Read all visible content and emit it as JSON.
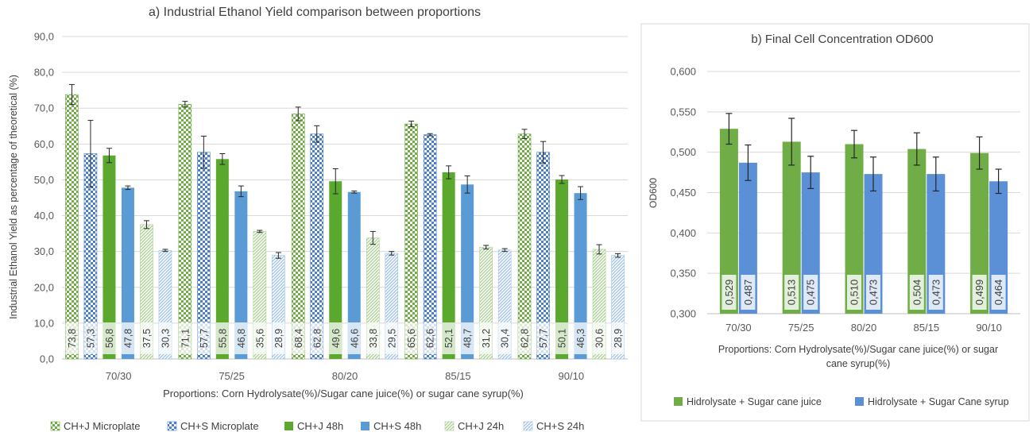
{
  "chart_data": [
    {
      "id": "a",
      "type": "bar",
      "title": "a) Industrial Ethanol Yield comparison between proportions",
      "xlabel": "Proportions: Corn Hydrolysate(%)/Sugar cane juice(%) or sugar cane syrup(%)",
      "ylabel": "Industrial Ethanol Yield as percentage of theoretical (%)",
      "ylim": [
        0,
        90
      ],
      "yticks": [
        "0,0",
        "10,0",
        "20,0",
        "30,0",
        "40,0",
        "50,0",
        "60,0",
        "70,0",
        "80,0",
        "90,0"
      ],
      "grid": true,
      "legend": "bottom",
      "categories": [
        "70/30",
        "75/25",
        "80/20",
        "85/15",
        "90/10"
      ],
      "series": [
        {
          "name": "CH+J Microplate",
          "color": "#70ad47",
          "pattern": "checker",
          "values": [
            73.8,
            71.1,
            68.4,
            65.6,
            62.8
          ],
          "err": [
            2.8,
            0.8,
            1.9,
            0.8,
            1.3
          ],
          "labels": [
            "73,8",
            "71,1",
            "68,4",
            "65,6",
            "62,8"
          ]
        },
        {
          "name": "CH+S Microplate",
          "color": "#4a7fd0",
          "pattern": "checker",
          "values": [
            57.3,
            57.7,
            62.8,
            62.6,
            57.7
          ],
          "err": [
            9.3,
            4.5,
            2.3,
            0.3,
            3.0
          ],
          "labels": [
            "57,3",
            "57,7",
            "62,8",
            "62,6",
            "57,7"
          ]
        },
        {
          "name": "CH+J 48h",
          "color": "#5aa82e",
          "pattern": "solid",
          "values": [
            56.8,
            55.8,
            49.6,
            52.1,
            50.1
          ],
          "err": [
            2.0,
            1.5,
            3.5,
            1.8,
            1.1
          ],
          "labels": [
            "56,8",
            "55,8",
            "49,6",
            "52,1",
            "50,1"
          ]
        },
        {
          "name": "CH+S 48h",
          "color": "#5b9bd5",
          "pattern": "solid",
          "values": [
            47.8,
            46.8,
            46.6,
            48.7,
            46.3
          ],
          "err": [
            0.5,
            1.5,
            0.3,
            2.4,
            1.8
          ],
          "labels": [
            "47,8",
            "46,8",
            "46,6",
            "48,7",
            "46,3"
          ]
        },
        {
          "name": "CH+J 24h",
          "color": "#a9d18e",
          "pattern": "diag",
          "values": [
            37.5,
            35.6,
            33.8,
            31.2,
            30.6
          ],
          "err": [
            1.1,
            0.3,
            1.8,
            0.5,
            1.3
          ],
          "labels": [
            "37,5",
            "35,6",
            "33,8",
            "31,2",
            "30,6"
          ]
        },
        {
          "name": "CH+S 24h",
          "color": "#9dc3e6",
          "pattern": "diag",
          "values": [
            30.3,
            28.9,
            29.5,
            30.4,
            28.9
          ],
          "err": [
            0.3,
            0.8,
            0.5,
            0.4,
            0.5
          ],
          "labels": [
            "30,3",
            "28,9",
            "29,5",
            "30,4",
            "28,9"
          ]
        }
      ]
    },
    {
      "id": "b",
      "type": "bar",
      "title": "b) Final Cell Concentration OD600",
      "xlabel_lines": [
        "Proportions: Corn Hydrolysate(%)/Sugar cane juice(%) or sugar",
        "cane syrup(%)"
      ],
      "ylabel": "OD600",
      "ylim": [
        0.3,
        0.6
      ],
      "yticks": [
        "0,300",
        "0,350",
        "0,400",
        "0,450",
        "0,500",
        "0,550",
        "0,600"
      ],
      "grid": true,
      "legend": "bottom",
      "categories": [
        "70/30",
        "75/25",
        "80/20",
        "85/15",
        "90/10"
      ],
      "series": [
        {
          "name": "Hidrolysate + Sugar cane juice",
          "color": "#70ad47",
          "values": [
            0.529,
            0.513,
            0.51,
            0.504,
            0.499
          ],
          "err": [
            0.019,
            0.029,
            0.017,
            0.02,
            0.02
          ],
          "labels": [
            "0,529",
            "0,513",
            "0,510",
            "0,504",
            "0,499"
          ]
        },
        {
          "name": "Hidrolysate + Sugar Cane syrup",
          "color": "#5b8fd6",
          "values": [
            0.487,
            0.475,
            0.473,
            0.473,
            0.464
          ],
          "err": [
            0.022,
            0.02,
            0.021,
            0.021,
            0.015
          ],
          "labels": [
            "0,487",
            "0,475",
            "0,473",
            "0,473",
            "0,464"
          ]
        }
      ]
    }
  ]
}
